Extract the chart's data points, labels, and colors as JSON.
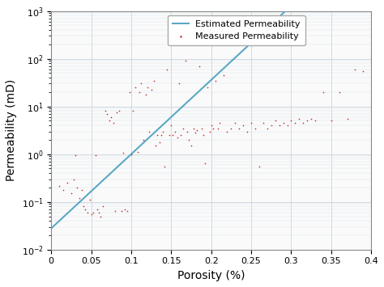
{
  "title": "",
  "xlabel": "Porosity (%)",
  "ylabel": "Permeability (mD)",
  "xlim": [
    0,
    0.4
  ],
  "ylim": [
    0.01,
    1000
  ],
  "curve_color": "#5BA8C4",
  "curve_label": "Estimated Permeability",
  "scatter_color": "#CC3333",
  "scatter_label": "Measured Permeability",
  "curve_a": 0.04,
  "curve_exp": 30.0,
  "curve_scale": 0.002,
  "background_color": "#FAFAFA",
  "grid_color_major": "#C0CDD8",
  "grid_color_minor": "#D8E4EC",
  "xticks": [
    0,
    0.05,
    0.1,
    0.15,
    0.2,
    0.25,
    0.3,
    0.35,
    0.4
  ],
  "measured_x": [
    0.01,
    0.015,
    0.02,
    0.025,
    0.028,
    0.03,
    0.032,
    0.035,
    0.038,
    0.04,
    0.042,
    0.045,
    0.048,
    0.05,
    0.052,
    0.055,
    0.057,
    0.06,
    0.062,
    0.065,
    0.068,
    0.07,
    0.073,
    0.075,
    0.078,
    0.08,
    0.082,
    0.085,
    0.088,
    0.09,
    0.092,
    0.095,
    0.098,
    0.1,
    0.102,
    0.105,
    0.108,
    0.11,
    0.112,
    0.115,
    0.118,
    0.12,
    0.122,
    0.125,
    0.128,
    0.13,
    0.132,
    0.135,
    0.138,
    0.14,
    0.142,
    0.145,
    0.148,
    0.15,
    0.152,
    0.155,
    0.158,
    0.16,
    0.162,
    0.165,
    0.168,
    0.17,
    0.172,
    0.175,
    0.178,
    0.18,
    0.182,
    0.185,
    0.188,
    0.19,
    0.192,
    0.195,
    0.198,
    0.2,
    0.202,
    0.205,
    0.208,
    0.21,
    0.215,
    0.22,
    0.225,
    0.23,
    0.235,
    0.24,
    0.245,
    0.25,
    0.255,
    0.26,
    0.265,
    0.27,
    0.275,
    0.28,
    0.285,
    0.29,
    0.295,
    0.3,
    0.305,
    0.31,
    0.315,
    0.32,
    0.325,
    0.33,
    0.34,
    0.35,
    0.36,
    0.37,
    0.38,
    0.39
  ],
  "measured_y": [
    0.22,
    0.18,
    0.25,
    0.15,
    0.3,
    0.95,
    0.2,
    0.12,
    0.18,
    0.08,
    0.07,
    0.06,
    0.11,
    0.055,
    0.06,
    0.95,
    0.07,
    0.06,
    0.05,
    0.08,
    8.0,
    7.0,
    5.0,
    6.0,
    4.5,
    0.065,
    7.5,
    8.0,
    0.065,
    1.05,
    0.07,
    0.065,
    20.0,
    1.0,
    8.0,
    25.0,
    1.1,
    20.0,
    30.0,
    2.0,
    18.0,
    25.0,
    3.0,
    22.0,
    35.0,
    1.5,
    2.5,
    1.8,
    2.5,
    3.0,
    0.55,
    60.0,
    2.5,
    4.0,
    2.5,
    3.0,
    2.2,
    30.0,
    2.5,
    3.5,
    90.0,
    3.0,
    2.0,
    1.5,
    3.5,
    2.8,
    3.2,
    70.0,
    3.5,
    2.5,
    0.65,
    25.0,
    3.0,
    4.0,
    3.5,
    35.0,
    3.5,
    4.5,
    45.0,
    3.0,
    3.5,
    4.5,
    3.5,
    4.0,
    3.0,
    4.5,
    3.5,
    0.55,
    4.5,
    3.5,
    4.0,
    5.0,
    4.0,
    4.5,
    4.0,
    5.0,
    4.5,
    5.5,
    4.5,
    5.0,
    5.5,
    5.0,
    20.0,
    5.0,
    20.0,
    5.5,
    60.0,
    55.0
  ]
}
